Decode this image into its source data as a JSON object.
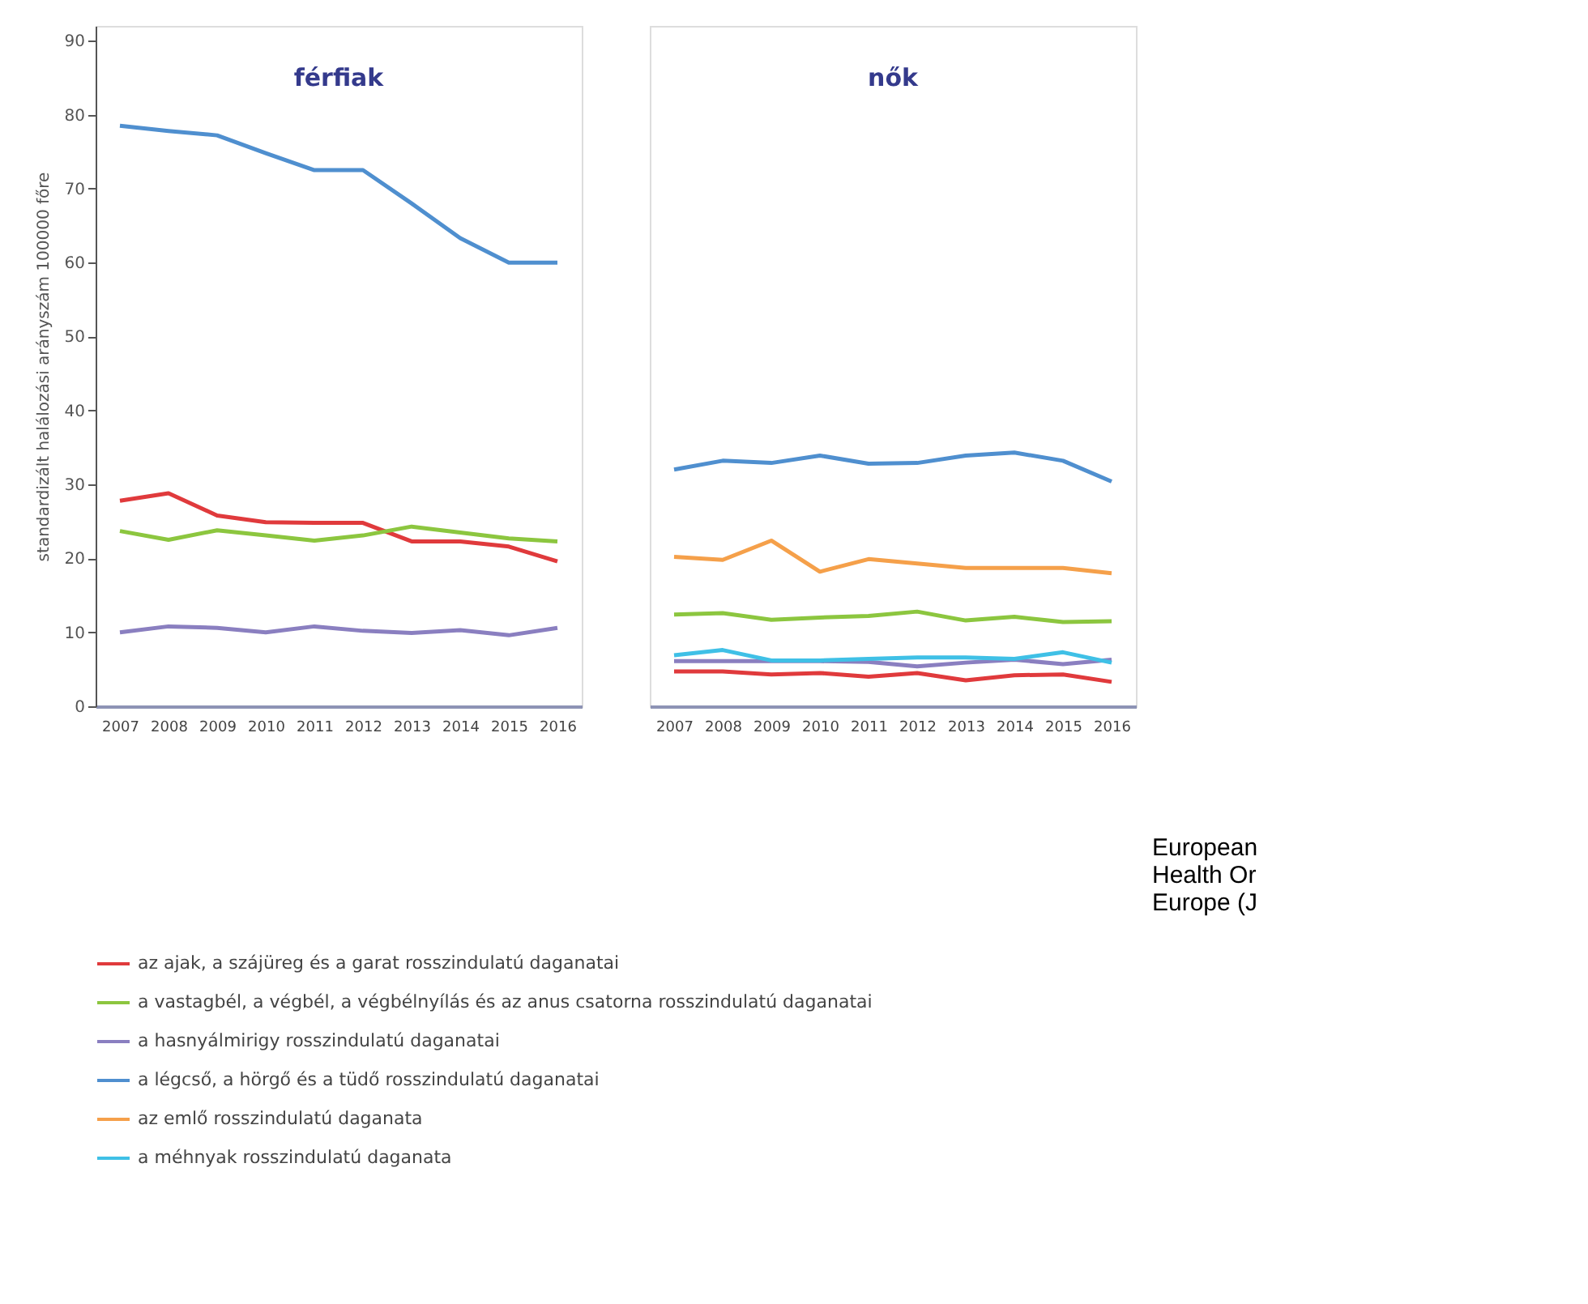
{
  "chart_data": [
    {
      "type": "line",
      "title": "férfiak",
      "ylabel": "standardizált halálozási arányszám 100000 főre",
      "categories": [
        "2007",
        "2008",
        "2009",
        "2010",
        "2011",
        "2012",
        "2013",
        "2014",
        "2015",
        "2016"
      ],
      "ylim": [
        0,
        92
      ],
      "yticks": [
        0,
        10,
        20,
        30,
        40,
        50,
        60,
        70,
        80,
        90
      ],
      "grid": false,
      "legend": "bottom",
      "line_style": "solid",
      "marker": "none",
      "series": [
        {
          "name": "az ajak, a szájüreg és a garat rosszindulatú daganatai",
          "color": "#e03a3c",
          "values": [
            27.8,
            28.8,
            25.8,
            24.9,
            24.8,
            24.8,
            22.3,
            22.3,
            21.6,
            19.6
          ]
        },
        {
          "name": "a vastagbél, a végbél, a végbélnyílás és az anus csatorna rosszindulatú daganatai",
          "color": "#8cc63f",
          "values": [
            23.7,
            22.5,
            23.8,
            23.1,
            22.4,
            23.1,
            24.3,
            23.5,
            22.7,
            22.3
          ]
        },
        {
          "name": "a hasnyálmirigy rosszindulatú daganatai",
          "color": "#8a7fc0",
          "values": [
            10.0,
            10.8,
            10.6,
            10.0,
            10.8,
            10.2,
            9.9,
            10.3,
            9.6,
            10.6
          ]
        },
        {
          "name": "a légcső, a hörgő és a tüdő rosszindulatú daganatai",
          "color": "#4f8fcf",
          "values": [
            78.5,
            77.8,
            77.2,
            74.8,
            72.5,
            72.5,
            68.0,
            63.3,
            60.0,
            60.0
          ]
        }
      ]
    },
    {
      "type": "line",
      "title": "nők",
      "categories": [
        "2007",
        "2008",
        "2009",
        "2010",
        "2011",
        "2012",
        "2013",
        "2014",
        "2015",
        "2016"
      ],
      "ylim": [
        0,
        92
      ],
      "tick_labels": "x",
      "grid": false,
      "legend": "bottom",
      "line_style": "solid",
      "marker": "none",
      "annotations": [
        "European\nHealth Or\nEurope (J"
      ],
      "series": [
        {
          "name": "az ajak, a szájüreg és a garat rosszindulatú daganatai",
          "color": "#e03a3c",
          "values": [
            4.7,
            4.7,
            4.3,
            4.5,
            4.0,
            4.5,
            3.5,
            4.2,
            4.3,
            3.3
          ]
        },
        {
          "name": "a vastagbél, a végbél, a végbélnyílás és az anus csatorna rosszindulatú daganatai",
          "color": "#8cc63f",
          "values": [
            12.4,
            12.6,
            11.7,
            12.0,
            12.2,
            12.8,
            11.6,
            12.1,
            11.4,
            11.5
          ]
        },
        {
          "name": "a hasnyálmirigy rosszindulatú daganatai",
          "color": "#8a7fc0",
          "values": [
            6.1,
            6.1,
            6.1,
            6.1,
            6.0,
            5.4,
            5.9,
            6.3,
            5.7,
            6.3
          ]
        },
        {
          "name": "a légcső, a hörgő és a tüdő rosszindulatú daganatai",
          "color": "#4f8fcf",
          "values": [
            32.0,
            33.2,
            32.9,
            33.9,
            32.8,
            32.9,
            33.9,
            34.3,
            33.2,
            30.4
          ]
        },
        {
          "name": "az emlő rosszindulatú daganata",
          "color": "#f5a04a",
          "values": [
            20.2,
            19.8,
            22.4,
            18.2,
            19.9,
            19.3,
            18.7,
            18.7,
            18.7,
            18.0
          ]
        },
        {
          "name": "a méhnyak rosszindulatú daganata",
          "color": "#3fc0e6",
          "values": [
            6.9,
            7.6,
            6.2,
            6.2,
            6.4,
            6.6,
            6.6,
            6.4,
            7.3,
            5.9
          ]
        }
      ]
    }
  ]
}
